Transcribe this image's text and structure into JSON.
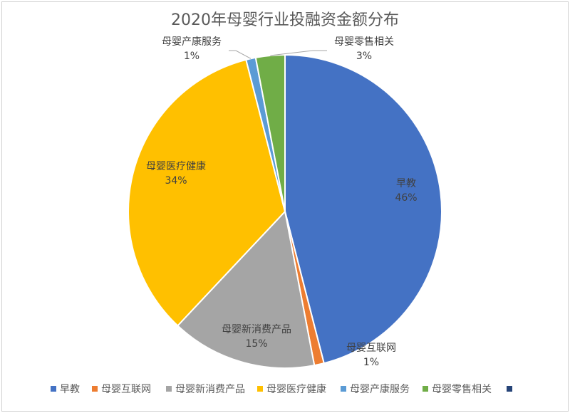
{
  "chart_data": {
    "type": "pie",
    "title": "2020年母婴行业投融资金额分布",
    "slices": [
      {
        "label": "早教",
        "value": 46,
        "pct_label": "46%",
        "color": "#4472C4"
      },
      {
        "label": "母婴互联网",
        "value": 1,
        "pct_label": "1%",
        "color": "#ED7D31"
      },
      {
        "label": "母婴新消费产品",
        "value": 15,
        "pct_label": "15%",
        "color": "#A5A5A5"
      },
      {
        "label": "母婴医疗健康",
        "value": 34,
        "pct_label": "34%",
        "color": "#FFC000"
      },
      {
        "label": "母婴产康服务",
        "value": 1,
        "pct_label": "1%",
        "color": "#5B9BD5"
      },
      {
        "label": "母婴零售相关",
        "value": 3,
        "pct_label": "3%",
        "color": "#70AD47"
      }
    ],
    "legend": {
      "position": "bottom",
      "entries": [
        "早教",
        "母婴互联网",
        "母婴新消费产品",
        "母婴医疗健康",
        "母婴产康服务",
        "母婴零售相关",
        ""
      ],
      "colors": [
        "#4472C4",
        "#ED7D31",
        "#A5A5A5",
        "#FFC000",
        "#5B9BD5",
        "#70AD47",
        "#264478"
      ]
    }
  }
}
